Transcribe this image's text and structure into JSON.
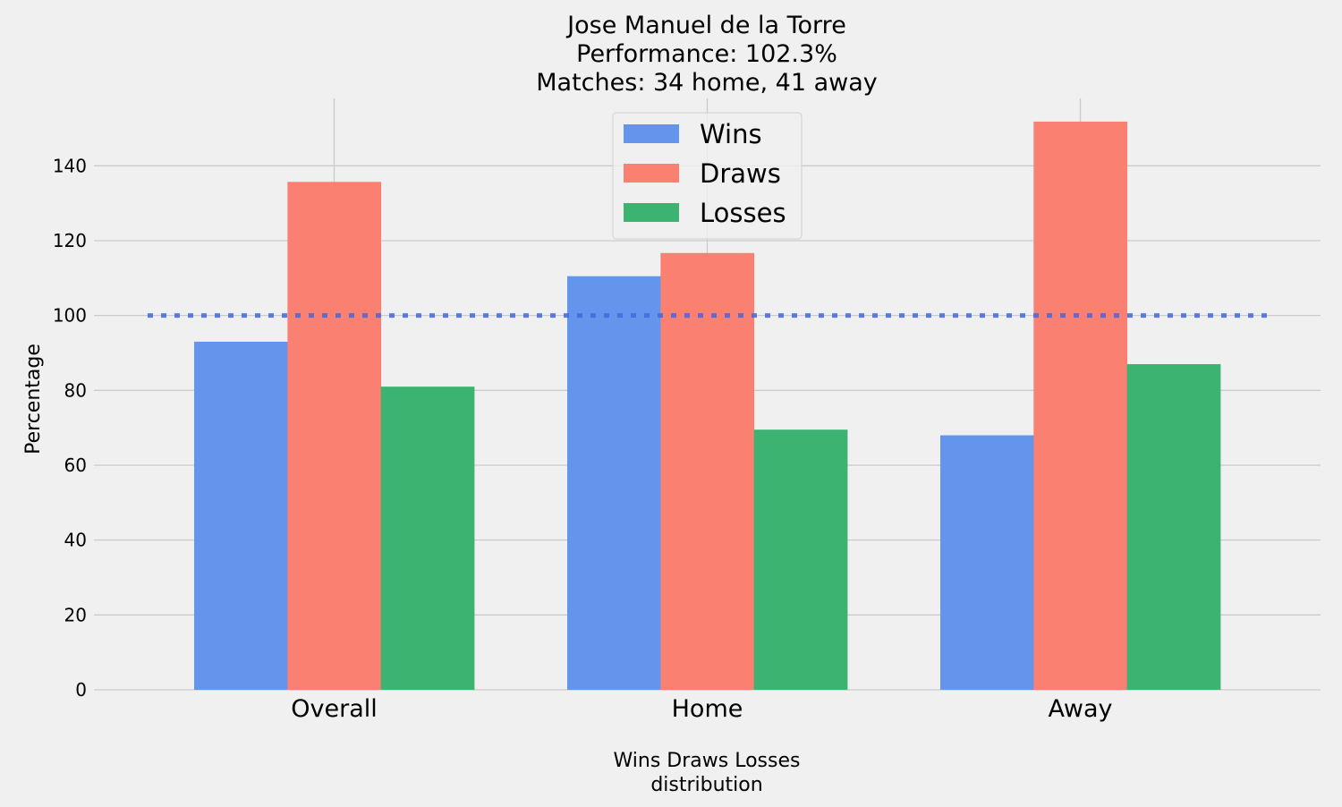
{
  "chart_data": {
    "type": "bar",
    "title_lines": [
      "Jose Manuel de la Torre",
      "Performance: 102.3%",
      "Matches: 34 home, 41 away"
    ],
    "xlabel_lines": [
      "Wins Draws Losses",
      "distribution"
    ],
    "ylabel": "Percentage",
    "categories": [
      "Overall",
      "Home",
      "Away"
    ],
    "series": [
      {
        "name": "Wins",
        "color": "#6495ed",
        "values": [
          93,
          110.5,
          68
        ]
      },
      {
        "name": "Draws",
        "color": "#fa8072",
        "values": [
          135.7,
          116.7,
          151.8
        ]
      },
      {
        "name": "Losses",
        "color": "#3cb371",
        "values": [
          81,
          69.5,
          87
        ]
      }
    ],
    "yticks": [
      "0",
      "20",
      "40",
      "60",
      "80",
      "100",
      "120",
      "140"
    ],
    "ylim": [
      0,
      158
    ],
    "reference_line": {
      "value": 100,
      "color": "#4169e1",
      "style": "dotted"
    },
    "grid": true,
    "legend_position": "top-center"
  }
}
